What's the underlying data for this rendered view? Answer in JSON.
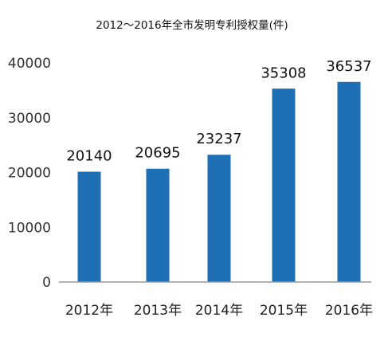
{
  "chart_data": {
    "type": "bar",
    "title": "2012～2016年全市发明专利授权量(件)",
    "categories": [
      "2012年",
      "2013年",
      "2014年",
      "2015年",
      "2016年"
    ],
    "series": [
      {
        "values": [
          20140,
          20695,
          23237,
          35308,
          36537
        ]
      }
    ],
    "data_labels": [
      "20140",
      "20695",
      "23237",
      "35308",
      "36537"
    ],
    "ylim": [
      0,
      40000
    ],
    "yticks": [
      0,
      10000,
      20000,
      30000,
      40000
    ],
    "grid": false,
    "legend": "none",
    "colors": {
      "bar": "#1f6fb4",
      "axis": "#999999"
    }
  }
}
